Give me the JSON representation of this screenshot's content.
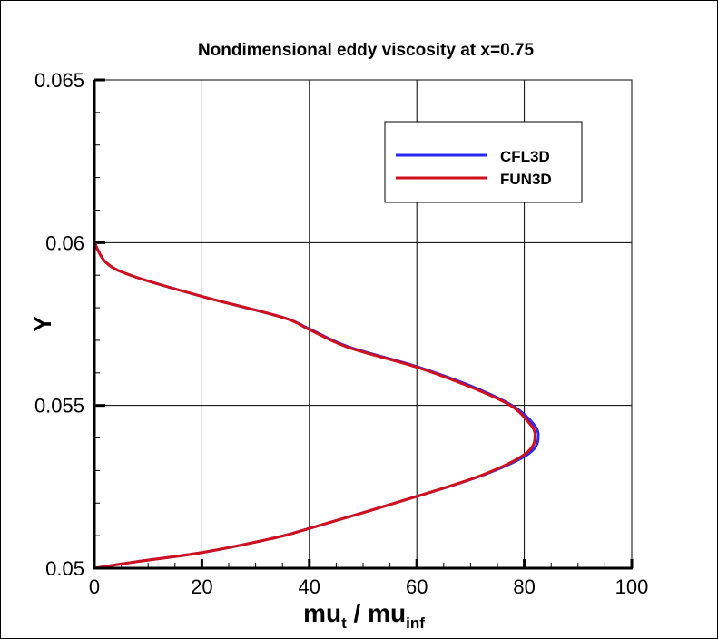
{
  "chart_data": {
    "type": "line",
    "title": "Nondimensional eddy viscosity at x=0.75",
    "xlabel_main": "mu",
    "xlabel_sub1": "t",
    "xlabel_mid": " / mu",
    "xlabel_sub2": "inf",
    "ylabel": "Y",
    "xlim": [
      0,
      100
    ],
    "ylim": [
      0.05,
      0.065
    ],
    "xticks": [
      "0",
      "20",
      "40",
      "60",
      "80",
      "100"
    ],
    "yticks": [
      "0.05",
      "0.055",
      "0.06",
      "0.065"
    ],
    "grid": true,
    "legend_placement": "top-right",
    "series": [
      {
        "name": "CFL3D",
        "color": "#2a2af0",
        "x": [
          0,
          2.3,
          7.4,
          20,
          34.9,
          40,
          47.3,
          59.9,
          70.0,
          77.4,
          81.0,
          82.6,
          81.0,
          72.8,
          59.9,
          40,
          32.7,
          20,
          7.9,
          0
        ],
        "y": [
          0.06,
          0.05937,
          0.05896,
          0.05835,
          0.05771,
          0.05735,
          0.0568,
          0.0562,
          0.0556,
          0.05503,
          0.05456,
          0.0541,
          0.05354,
          0.05289,
          0.0522,
          0.05122,
          0.0509,
          0.05048,
          0.0502,
          0.05
        ]
      },
      {
        "name": "FUN3D",
        "color": "#d0101c",
        "x": [
          0,
          2.3,
          7.4,
          20,
          34.9,
          40,
          47.3,
          59.9,
          69.8,
          77.1,
          80.4,
          82.0,
          80.4,
          72.6,
          59.9,
          40,
          32.7,
          20,
          7.9,
          0
        ],
        "y": [
          0.06,
          0.05937,
          0.05896,
          0.05835,
          0.05771,
          0.05733,
          0.05678,
          0.05618,
          0.05558,
          0.05503,
          0.05456,
          0.0541,
          0.05354,
          0.05289,
          0.0522,
          0.05122,
          0.0509,
          0.05048,
          0.0502,
          0.05
        ]
      }
    ]
  }
}
